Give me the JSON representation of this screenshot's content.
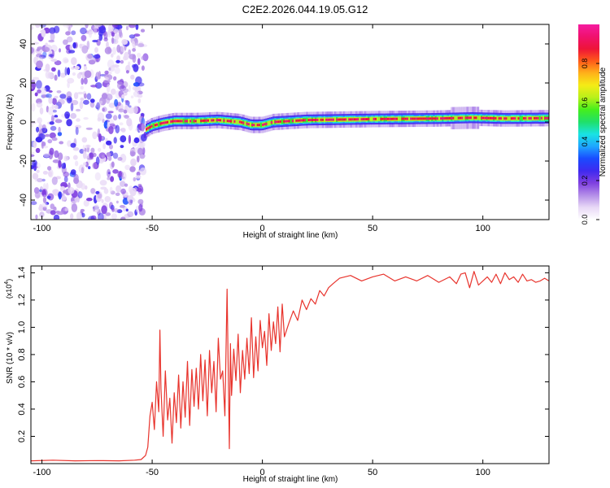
{
  "title": "C2E2.2026.044.19.05.G12",
  "colors": {
    "snr_line": "#e8332c",
    "colorbar": [
      "#ffffff",
      "#e8d8f6",
      "#b48ee8",
      "#7f3fe0",
      "#3f2af0",
      "#1a4bff",
      "#1fa6ff",
      "#19e3e3",
      "#1fe06a",
      "#45ef1c",
      "#b8f01a",
      "#f5ec16",
      "#ffb21a",
      "#ff5a1a",
      "#ee1438",
      "#f0116e",
      "#f51ca0"
    ]
  },
  "chart_data": [
    {
      "type": "heatmap",
      "xlabel": "Height of straight line (km)",
      "ylabel": "Frequency (Hz)",
      "xlim": [
        -105,
        130
      ],
      "ylim": [
        -50,
        50
      ],
      "x_ticks": [
        -100,
        -50,
        0,
        50,
        100
      ],
      "y_ticks": [
        -40,
        -20,
        0,
        20,
        40
      ],
      "grid": false,
      "colorbar": {
        "label": "Normalized spectral amplitude",
        "range": [
          0,
          1
        ],
        "ticks": [
          "0.0",
          "0.2",
          "0.4",
          "0.6",
          "0.8"
        ]
      },
      "noise_region_x": [
        -105,
        -53
      ],
      "signal_trace": [
        {
          "x": -53,
          "y": -4.0
        },
        {
          "x": -50,
          "y": -2.0
        },
        {
          "x": -45,
          "y": -0.5
        },
        {
          "x": -40,
          "y": 0.5
        },
        {
          "x": -30,
          "y": 0.5
        },
        {
          "x": -20,
          "y": 1.0
        },
        {
          "x": -10,
          "y": 0.0
        },
        {
          "x": -5,
          "y": -1.5
        },
        {
          "x": 0,
          "y": -1.5
        },
        {
          "x": 5,
          "y": 0.0
        },
        {
          "x": 20,
          "y": 1.0
        },
        {
          "x": 50,
          "y": 1.5
        },
        {
          "x": 80,
          "y": 1.8
        },
        {
          "x": 95,
          "y": 2.2
        },
        {
          "x": 110,
          "y": 1.8
        },
        {
          "x": 130,
          "y": 2.0
        }
      ]
    },
    {
      "type": "line",
      "xlabel": "Height of straight line (km)",
      "ylabel": "SNR (10 * v/v)",
      "y_multiplier": "(x10",
      "y_multiplier_exp": "4",
      "y_multiplier_close": ")",
      "xlim": [
        -105,
        130
      ],
      "ylim": [
        0,
        14500
      ],
      "x_ticks": [
        -100,
        -50,
        0,
        50,
        100
      ],
      "y_ticks": [
        "0.2",
        "0.4",
        "0.6",
        "0.8",
        "1.0",
        "1.2",
        "1.4"
      ],
      "grid": false,
      "series": [
        {
          "x": [
            -105,
            -95,
            -85,
            -75,
            -65,
            -58,
            -55,
            -53,
            -52,
            -51,
            -50,
            -49,
            -48,
            -47,
            -46.5,
            -46,
            -45,
            -44,
            -43,
            -42,
            -41,
            -40,
            -39,
            -38,
            -37,
            -36,
            -35,
            -34,
            -33,
            -32,
            -31,
            -30,
            -29,
            -28,
            -27,
            -26,
            -25,
            -24,
            -23,
            -22,
            -21,
            -20,
            -19,
            -18,
            -17,
            -16,
            -15,
            -14.5,
            -14,
            -13,
            -12,
            -11,
            -10,
            -9,
            -8,
            -7,
            -6,
            -5,
            -4,
            -3,
            -2,
            -1,
            0,
            1,
            2,
            3,
            4,
            5,
            6,
            7,
            8,
            9,
            10,
            12,
            14,
            16,
            18,
            20,
            22,
            24,
            26,
            28,
            30,
            32,
            35,
            40,
            45,
            50,
            55,
            60,
            65,
            70,
            75,
            80,
            85,
            88,
            90,
            92,
            94,
            95,
            96,
            98,
            100,
            102,
            104,
            106,
            108,
            110,
            112,
            114,
            116,
            118,
            120,
            122,
            124,
            126,
            128,
            130
          ],
          "y": [
            200,
            250,
            200,
            220,
            200,
            250,
            300,
            600,
            1200,
            3500,
            4500,
            2500,
            6000,
            3800,
            9800,
            5500,
            2000,
            6800,
            3200,
            4800,
            1500,
            5200,
            3000,
            6500,
            2600,
            6000,
            3400,
            7500,
            2800,
            6900,
            4200,
            7000,
            4000,
            8000,
            4600,
            7600,
            3500,
            8300,
            5200,
            7500,
            3800,
            9200,
            6200,
            6800,
            3500,
            12800,
            1100,
            8800,
            5000,
            8400,
            6100,
            9500,
            5200,
            8300,
            6200,
            9200,
            6600,
            10700,
            6300,
            9300,
            6800,
            10500,
            8500,
            9700,
            7200,
            11000,
            8300,
            10400,
            8800,
            11500,
            8200,
            11700,
            9300,
            10300,
            11200,
            10500,
            12000,
            11300,
            12100,
            11700,
            12700,
            12300,
            12900,
            13200,
            13600,
            13800,
            13400,
            13700,
            13900,
            13400,
            13700,
            13400,
            13800,
            13300,
            13700,
            13200,
            13900,
            14000,
            12900,
            13500,
            14100,
            13100,
            13400,
            13700,
            13300,
            13900,
            13200,
            14000,
            13500,
            13700,
            13300,
            13900,
            13400,
            13500,
            13300,
            13400,
            13600,
            13400
          ]
        }
      ]
    }
  ]
}
